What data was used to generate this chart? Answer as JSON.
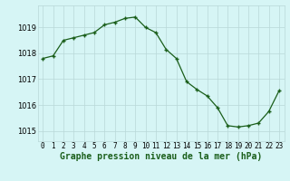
{
  "x": [
    0,
    1,
    2,
    3,
    4,
    5,
    6,
    7,
    8,
    9,
    10,
    11,
    12,
    13,
    14,
    15,
    16,
    17,
    18,
    19,
    20,
    21,
    22,
    23
  ],
  "y": [
    1017.8,
    1017.9,
    1018.5,
    1018.6,
    1018.7,
    1018.8,
    1019.1,
    1019.2,
    1019.35,
    1019.4,
    1019.0,
    1018.8,
    1018.15,
    1017.8,
    1016.9,
    1016.6,
    1016.35,
    1015.9,
    1015.2,
    1015.15,
    1015.2,
    1015.3,
    1015.75,
    1016.55
  ],
  "line_color": "#1a5e1a",
  "marker_color": "#1a5e1a",
  "bg_color": "#d6f5f5",
  "grid_color": "#b8d8d8",
  "title": "Graphe pression niveau de la mer (hPa)",
  "yticks": [
    1015,
    1016,
    1017,
    1018,
    1019
  ],
  "xtick_labels": [
    "0",
    "1",
    "2",
    "3",
    "4",
    "5",
    "6",
    "7",
    "8",
    "9",
    "10",
    "11",
    "12",
    "13",
    "14",
    "15",
    "16",
    "17",
    "18",
    "19",
    "20",
    "21",
    "22",
    "23"
  ],
  "ylim": [
    1014.6,
    1019.85
  ],
  "xlim": [
    -0.5,
    23.5
  ],
  "title_color": "#1a5e1a",
  "title_fontsize": 7.0,
  "tick_fontsize": 5.5,
  "marker_size": 3.5,
  "linewidth": 0.9
}
